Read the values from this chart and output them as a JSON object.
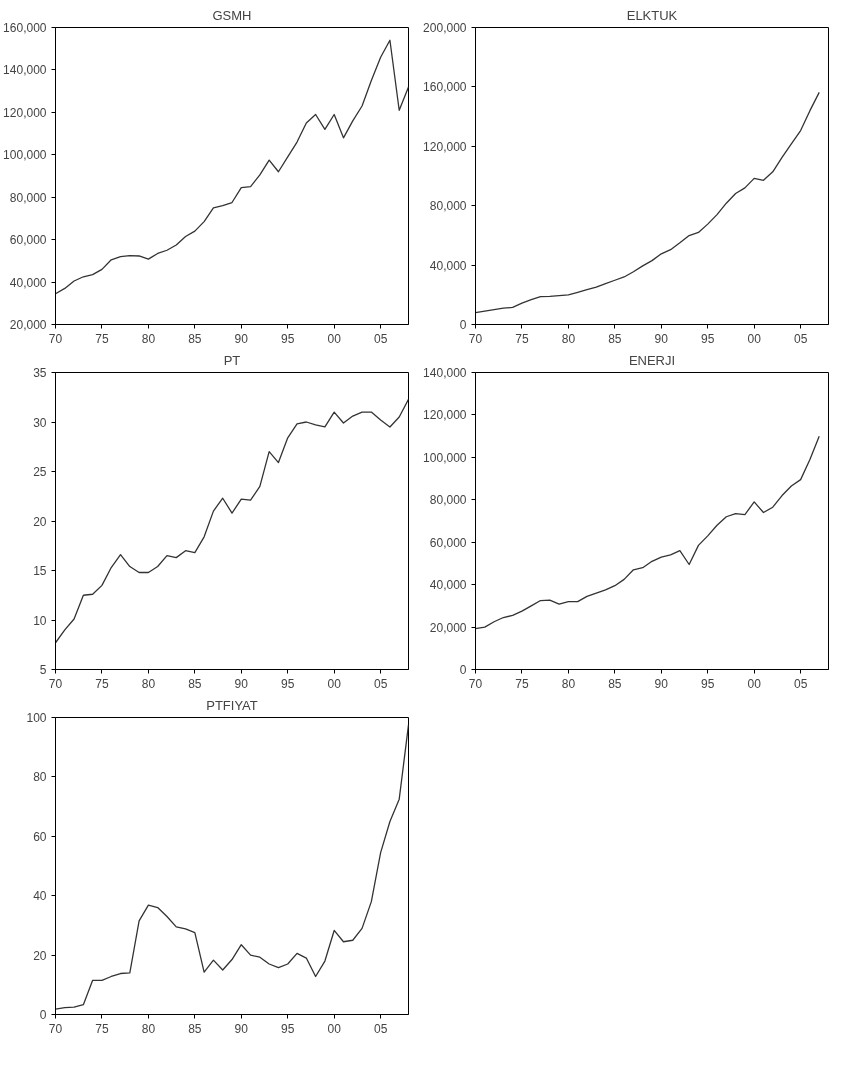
{
  "chart_data": [
    {
      "type": "line",
      "title": "GSMH",
      "x": [
        1970,
        1971,
        1972,
        1973,
        1974,
        1975,
        1976,
        1977,
        1978,
        1979,
        1980,
        1981,
        1982,
        1983,
        1984,
        1985,
        1986,
        1987,
        1988,
        1989,
        1990,
        1991,
        1992,
        1993,
        1994,
        1995,
        1996,
        1997,
        1998,
        1999,
        2000,
        2001,
        2002,
        2003,
        2004,
        2005,
        2006,
        2007,
        2008
      ],
      "series": [
        {
          "color": "#333333",
          "values": [
            34500,
            37000,
            40500,
            42500,
            43500,
            46000,
            50500,
            52000,
            52500,
            52300,
            50800,
            53500,
            55000,
            57500,
            61500,
            64000,
            68500,
            75000,
            76000,
            77500,
            84500,
            85000,
            90500,
            97500,
            92000,
            99000,
            106000,
            115000,
            119000,
            112000,
            119000,
            108000,
            116000,
            123000,
            135000,
            146000,
            154000,
            121000,
            132000
          ]
        }
      ],
      "xlim": [
        1970,
        2008
      ],
      "ylim": [
        20000,
        160000
      ],
      "xticks": [
        {
          "value": 1970,
          "label": "70"
        },
        {
          "value": 1975,
          "label": "75"
        },
        {
          "value": 1980,
          "label": "80"
        },
        {
          "value": 1985,
          "label": "85"
        },
        {
          "value": 1990,
          "label": "90"
        },
        {
          "value": 1995,
          "label": "95"
        },
        {
          "value": 2000,
          "label": "00"
        },
        {
          "value": 2005,
          "label": "05"
        }
      ],
      "yticks": [
        {
          "value": 20000,
          "label": "20,000"
        },
        {
          "value": 40000,
          "label": "40,000"
        },
        {
          "value": 60000,
          "label": "60,000"
        },
        {
          "value": 80000,
          "label": "80,000"
        },
        {
          "value": 100000,
          "label": "100,000"
        },
        {
          "value": 120000,
          "label": "120,000"
        },
        {
          "value": 140000,
          "label": "140,000"
        },
        {
          "value": 160000,
          "label": "160,000"
        }
      ],
      "grid": false,
      "line_style": "solid"
    },
    {
      "type": "line",
      "title": "ELKTUK",
      "x": [
        1970,
        1971,
        1972,
        1973,
        1974,
        1975,
        1976,
        1977,
        1978,
        1979,
        1980,
        1981,
        1982,
        1983,
        1984,
        1985,
        1986,
        1987,
        1988,
        1989,
        1990,
        1991,
        1992,
        1993,
        1994,
        1995,
        1996,
        1997,
        1998,
        1999,
        2000,
        2001,
        2002,
        2003,
        2004,
        2005,
        2006,
        2007
      ],
      "series": [
        {
          "color": "#333333",
          "values": [
            8000,
            9000,
            10000,
            11000,
            11500,
            14400,
            16700,
            18800,
            19000,
            19500,
            20000,
            21700,
            23500,
            25200,
            27500,
            29800,
            32000,
            35500,
            39500,
            43000,
            47600,
            50400,
            55000,
            59900,
            62000,
            67600,
            74000,
            81700,
            88200,
            92000,
            98400,
            97100,
            102800,
            112600,
            121600,
            130600,
            144000,
            156300
          ]
        }
      ],
      "xlim": [
        1970,
        2008
      ],
      "ylim": [
        0,
        200000
      ],
      "xticks": [
        {
          "value": 1970,
          "label": "70"
        },
        {
          "value": 1975,
          "label": "75"
        },
        {
          "value": 1980,
          "label": "80"
        },
        {
          "value": 1985,
          "label": "85"
        },
        {
          "value": 1990,
          "label": "90"
        },
        {
          "value": 1995,
          "label": "95"
        },
        {
          "value": 2000,
          "label": "00"
        },
        {
          "value": 2005,
          "label": "05"
        }
      ],
      "yticks": [
        0,
        {
          "value": 40000,
          "label": "40,000"
        },
        {
          "value": 80000,
          "label": "80,000"
        },
        {
          "value": 120000,
          "label": "120,000"
        },
        {
          "value": 160000,
          "label": "160,000"
        },
        {
          "value": 200000,
          "label": "200,000"
        }
      ],
      "grid": false,
      "line_style": "solid"
    },
    {
      "type": "line",
      "title": "PT",
      "x": [
        1970,
        1971,
        1972,
        1973,
        1974,
        1975,
        1976,
        1977,
        1978,
        1979,
        1980,
        1981,
        1982,
        1983,
        1984,
        1985,
        1986,
        1987,
        1988,
        1989,
        1990,
        1991,
        1992,
        1993,
        1994,
        1995,
        1996,
        1997,
        1998,
        1999,
        2000,
        2001,
        2002,
        2003,
        2004,
        2005,
        2006,
        2007,
        2008
      ],
      "series": [
        {
          "color": "#333333",
          "values": [
            7.7,
            9.0,
            10.1,
            12.5,
            12.6,
            13.5,
            15.3,
            16.6,
            15.4,
            14.8,
            14.8,
            15.4,
            16.5,
            16.3,
            17.0,
            16.8,
            18.4,
            21.0,
            22.3,
            20.8,
            22.2,
            22.1,
            23.5,
            27.0,
            25.9,
            28.4,
            29.8,
            30.0,
            29.7,
            29.5,
            31.0,
            29.9,
            30.6,
            31.0,
            31.0,
            30.2,
            29.5,
            30.5,
            32.3
          ]
        }
      ],
      "xlim": [
        1970,
        2008
      ],
      "ylim": [
        5,
        35
      ],
      "xticks": [
        {
          "value": 1970,
          "label": "70"
        },
        {
          "value": 1975,
          "label": "75"
        },
        {
          "value": 1980,
          "label": "80"
        },
        {
          "value": 1985,
          "label": "85"
        },
        {
          "value": 1990,
          "label": "90"
        },
        {
          "value": 1995,
          "label": "95"
        },
        {
          "value": 2000,
          "label": "00"
        },
        {
          "value": 2005,
          "label": "05"
        }
      ],
      "yticks": [
        5,
        10,
        15,
        20,
        25,
        30,
        35
      ],
      "grid": false,
      "line_style": "solid"
    },
    {
      "type": "line",
      "title": "ENERJI",
      "x": [
        1970,
        1971,
        1972,
        1973,
        1974,
        1975,
        1976,
        1977,
        1978,
        1979,
        1980,
        1981,
        1982,
        1983,
        1984,
        1985,
        1986,
        1987,
        1988,
        1989,
        1990,
        1991,
        1992,
        1993,
        1994,
        1995,
        1996,
        1997,
        1998,
        1999,
        2000,
        2001,
        2002,
        2003,
        2004,
        2005,
        2006,
        2007
      ],
      "series": [
        {
          "color": "#333333",
          "values": [
            19300,
            20000,
            22500,
            24500,
            25500,
            27500,
            30000,
            32500,
            32700,
            30800,
            32000,
            32000,
            34500,
            36000,
            37500,
            39500,
            42500,
            47000,
            48000,
            51000,
            53000,
            54000,
            56000,
            49500,
            58500,
            63000,
            68000,
            72000,
            73500,
            73000,
            79000,
            74000,
            76500,
            82000,
            86500,
            89500,
            99000,
            110000
          ]
        }
      ],
      "xlim": [
        1970,
        2008
      ],
      "ylim": [
        0,
        140000
      ],
      "xticks": [
        {
          "value": 1970,
          "label": "70"
        },
        {
          "value": 1975,
          "label": "75"
        },
        {
          "value": 1980,
          "label": "80"
        },
        {
          "value": 1985,
          "label": "85"
        },
        {
          "value": 1990,
          "label": "90"
        },
        {
          "value": 1995,
          "label": "95"
        },
        {
          "value": 2000,
          "label": "00"
        },
        {
          "value": 2005,
          "label": "05"
        }
      ],
      "yticks": [
        0,
        {
          "value": 20000,
          "label": "20,000"
        },
        {
          "value": 40000,
          "label": "40,000"
        },
        {
          "value": 60000,
          "label": "60,000"
        },
        {
          "value": 80000,
          "label": "80,000"
        },
        {
          "value": 100000,
          "label": "100,000"
        },
        {
          "value": 120000,
          "label": "120,000"
        },
        {
          "value": 140000,
          "label": "140,000"
        }
      ],
      "grid": false,
      "line_style": "solid"
    },
    {
      "type": "line",
      "title": "PTFIYAT",
      "x": [
        1970,
        1971,
        1972,
        1973,
        1974,
        1975,
        1976,
        1977,
        1978,
        1979,
        1980,
        1981,
        1982,
        1983,
        1984,
        1985,
        1986,
        1987,
        1988,
        1989,
        1990,
        1991,
        1992,
        1993,
        1994,
        1995,
        1996,
        1997,
        1998,
        1999,
        2000,
        2001,
        2002,
        2003,
        2004,
        2005,
        2006,
        2007,
        2008
      ],
      "series": [
        {
          "color": "#333333",
          "values": [
            1.8,
            2.3,
            2.5,
            3.3,
            11.5,
            11.5,
            12.8,
            13.8,
            14.0,
            31.5,
            36.8,
            36.0,
            33.0,
            29.5,
            28.8,
            27.6,
            14.3,
            18.3,
            15.0,
            18.5,
            23.5,
            20.0,
            19.3,
            17.0,
            15.8,
            17.0,
            20.6,
            19.0,
            12.8,
            18.0,
            28.3,
            24.5,
            25.0,
            29.0,
            38.0,
            54.5,
            65.0,
            72.5,
            97.5
          ]
        }
      ],
      "xlim": [
        1970,
        2008
      ],
      "ylim": [
        0,
        100
      ],
      "xticks": [
        {
          "value": 1970,
          "label": "70"
        },
        {
          "value": 1975,
          "label": "75"
        },
        {
          "value": 1980,
          "label": "80"
        },
        {
          "value": 1985,
          "label": "85"
        },
        {
          "value": 1990,
          "label": "90"
        },
        {
          "value": 1995,
          "label": "95"
        },
        {
          "value": 2000,
          "label": "00"
        },
        {
          "value": 2005,
          "label": "05"
        }
      ],
      "yticks": [
        0,
        20,
        40,
        60,
        80,
        100
      ],
      "grid": false,
      "line_style": "solid"
    }
  ]
}
